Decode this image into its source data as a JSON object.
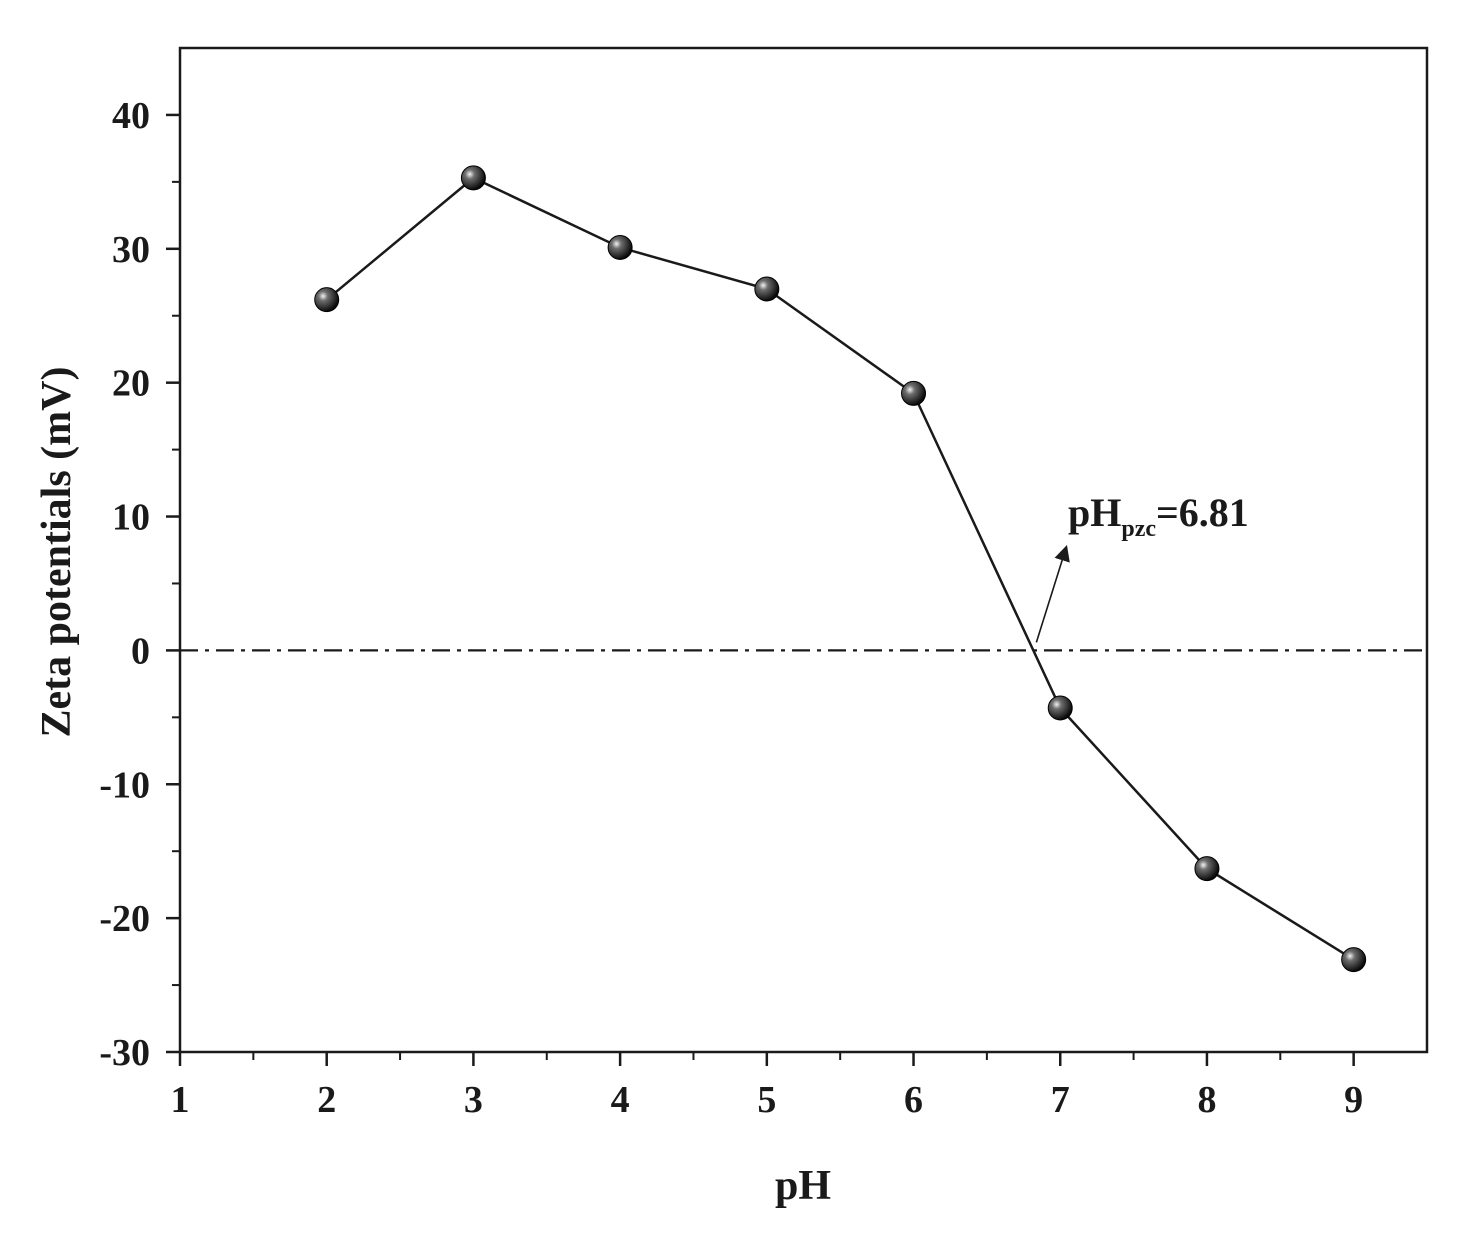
{
  "chart_data": {
    "type": "line",
    "title": "",
    "xlabel": "pH",
    "ylabel": "Zeta potentials (mV)",
    "xlim": [
      1,
      9.5
    ],
    "ylim": [
      -30,
      45
    ],
    "x_ticks": [
      "1",
      "2",
      "3",
      "4",
      "5",
      "6",
      "7",
      "8",
      "9"
    ],
    "y_ticks": [
      "-30",
      "-20",
      "-10",
      "0",
      "10",
      "20",
      "30",
      "40"
    ],
    "series": [
      {
        "x": [
          2,
          3,
          4,
          5,
          6,
          7,
          8,
          9
        ],
        "values": [
          26.2,
          35.3,
          30.1,
          27.0,
          19.2,
          -4.3,
          -16.3,
          -23.1
        ]
      }
    ],
    "reference_line": {
      "y": 0,
      "style": "dash-dot"
    },
    "annotation": {
      "main": "pH",
      "subscript": "pzc",
      "suffix": "=6.81",
      "points_to_x": 6.81,
      "points_to_y": 0
    },
    "grid": false,
    "colors": {
      "line": "#1a1a1a",
      "marker": "#111111",
      "background": "#ffffff"
    }
  }
}
